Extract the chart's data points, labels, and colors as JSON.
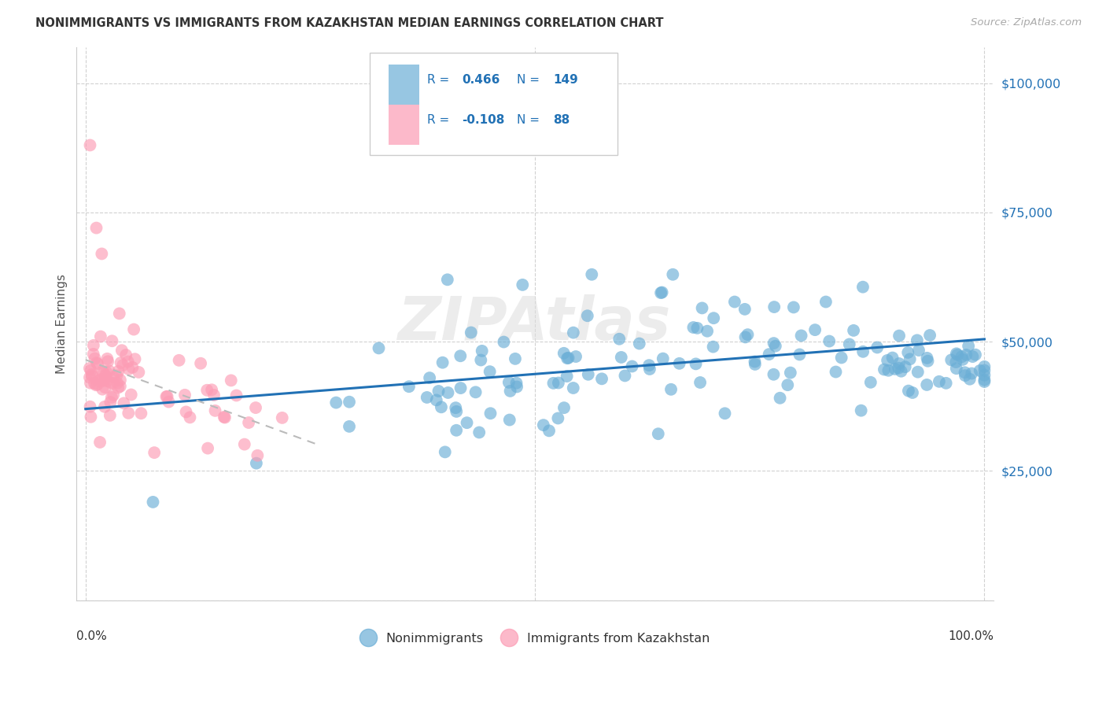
{
  "title": "NONIMMIGRANTS VS IMMIGRANTS FROM KAZAKHSTAN MEDIAN EARNINGS CORRELATION CHART",
  "source": "Source: ZipAtlas.com",
  "ylabel": "Median Earnings",
  "blue_color": "#6BAED6",
  "pink_color": "#FC9CB4",
  "trend_blue_color": "#2171B5",
  "trend_pink_color": "#BBBBBB",
  "watermark": "ZIPAtlas",
  "r_blue": "0.466",
  "n_blue": "149",
  "r_pink": "-0.108",
  "n_pink": "88",
  "ytick_labels": [
    "",
    "$25,000",
    "$50,000",
    "$75,000",
    "$100,000"
  ],
  "ytick_values": [
    0,
    25000,
    50000,
    75000,
    100000
  ],
  "y_range": [
    0,
    107000
  ],
  "x_range": [
    -0.01,
    1.01
  ],
  "trend_blue_x0": 0.0,
  "trend_blue_y0": 37000,
  "trend_blue_x1": 1.0,
  "trend_blue_y1": 50500,
  "trend_pink_x0": 0.0,
  "trend_pink_y0": 46500,
  "trend_pink_x1": 0.26,
  "trend_pink_y1": 30000
}
